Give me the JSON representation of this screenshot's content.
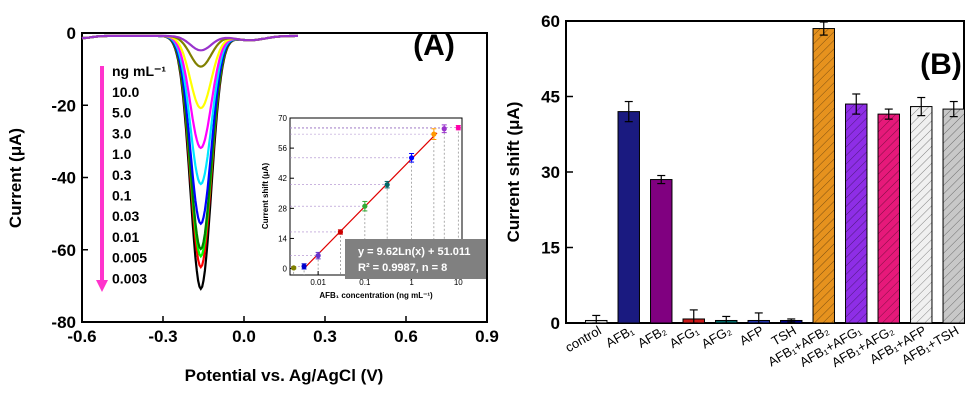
{
  "panelA": {
    "label": "(A)",
    "xlabel": "Potential vs. Ag/AgCl (V)",
    "ylabel": "Current (μA)",
    "xticks": [
      "-0.6",
      "-0.3",
      "0.0",
      "0.3",
      "0.6",
      "0.9"
    ],
    "yticks": [
      "0",
      "-20",
      "-40",
      "-60",
      "-80"
    ],
    "legend_title": "ng mL⁻¹",
    "legend_items": [
      "10.0",
      "5.0",
      "3.0",
      "1.0",
      "0.3",
      "0.1",
      "0.03",
      "0.01",
      "0.005",
      "0.003"
    ]
  },
  "inset": {
    "xlabel": "AFB₁ concentration (ng mL⁻¹)",
    "ylabel": "Current shift (μA)",
    "xticks": [
      "0.01",
      "0.1",
      "1",
      "10"
    ],
    "yticks": [
      "0",
      "14",
      "28",
      "42",
      "56",
      "70"
    ],
    "equation": "y = 9.62Ln(x) + 51.011",
    "r2": "R² = 0.9987, n = 8"
  },
  "panelB": {
    "label": "(B)",
    "ylabel": "Current shift (μA)",
    "yticks": [
      "0",
      "15",
      "30",
      "45",
      "60"
    ]
  },
  "chart_data": [
    {
      "type": "line",
      "title": "(A)",
      "xlabel": "Potential vs. Ag/AgCl (V)",
      "ylabel": "Current (μA)",
      "xlim": [
        -0.6,
        0.9
      ],
      "ylim": [
        -80,
        0
      ],
      "peak_potential": -0.16,
      "series": [
        {
          "name": "10.0",
          "peak_current": -4,
          "color": "#9933cc"
        },
        {
          "name": "5.0",
          "peak_current": -8.5,
          "color": "#808000"
        },
        {
          "name": "3.0",
          "peak_current": -20,
          "color": "#ffff00"
        },
        {
          "name": "1.0",
          "peak_current": -31,
          "color": "#ff00ff"
        },
        {
          "name": "0.3",
          "peak_current": -41,
          "color": "#00e5ff"
        },
        {
          "name": "0.1",
          "peak_current": -52,
          "color": "#0000ff"
        },
        {
          "name": "0.03",
          "peak_current": -59,
          "color": "#008000"
        },
        {
          "name": "0.01",
          "peak_current": -61,
          "color": "#00ff00"
        },
        {
          "name": "0.005",
          "peak_current": -64,
          "color": "#ff0000"
        },
        {
          "name": "0.003",
          "peak_current": -70,
          "color": "#000000"
        }
      ]
    },
    {
      "type": "scatter",
      "xlabel": "AFB₁ concentration (ng mL⁻¹)",
      "ylabel": "Current shift (μA)",
      "x_scale": "log",
      "xlim": [
        0.0025,
        12
      ],
      "ylim": [
        -3,
        70
      ],
      "x": [
        0.003,
        0.005,
        0.01,
        0.03,
        0.1,
        0.3,
        1.0,
        3.0,
        5.0,
        10.0
      ],
      "y": [
        0.3,
        1.0,
        6.0,
        17.0,
        29.0,
        39.0,
        51.5,
        62.5,
        65.0,
        65.5
      ],
      "errors": [
        0.5,
        1.2,
        1.5,
        1.0,
        2.2,
        1.5,
        2.0,
        2.5,
        1.8,
        1.0
      ],
      "colors": [
        "#808000",
        "#0000cc",
        "#6633cc",
        "#cc0000",
        "#33aa33",
        "#006666",
        "#0000ff",
        "#ff9900",
        "#9933cc",
        "#ff00aa"
      ],
      "fit": {
        "equation": "y = 9.62Ln(x) + 51.011",
        "r2": "R² = 0.9987, n = 8"
      }
    },
    {
      "type": "bar",
      "title": "(B)",
      "ylabel": "Current shift (μA)",
      "ylim": [
        0,
        60
      ],
      "categories": [
        "control",
        "AFB₁",
        "AFB₂",
        "AFG₁",
        "AFG₂",
        "AFP",
        "TSH",
        "AFB₁+AFB₂",
        "AFB₁+AFG₁",
        "AFB₁+AFG₂",
        "AFB₁+AFP",
        "AFB₁+TSH"
      ],
      "values": [
        0.5,
        42.0,
        28.5,
        0.8,
        0.5,
        0.5,
        0.5,
        58.5,
        43.5,
        41.5,
        43.0,
        42.5
      ],
      "errors": [
        1.0,
        2.0,
        0.8,
        1.8,
        0.8,
        1.5,
        0.3,
        1.3,
        2.0,
        1.0,
        1.8,
        1.5
      ],
      "colors": [
        "#d4d4d4",
        "#1a1a80",
        "#800080",
        "#cc1a1a",
        "#006666",
        "#2233aa",
        "#000080",
        "#e6921e",
        "#8e2ee6",
        "#e6197a",
        "#f0f0f0",
        "#c8c8c8"
      ],
      "hatched": [
        false,
        false,
        false,
        false,
        false,
        false,
        false,
        true,
        true,
        true,
        true,
        true
      ]
    }
  ]
}
